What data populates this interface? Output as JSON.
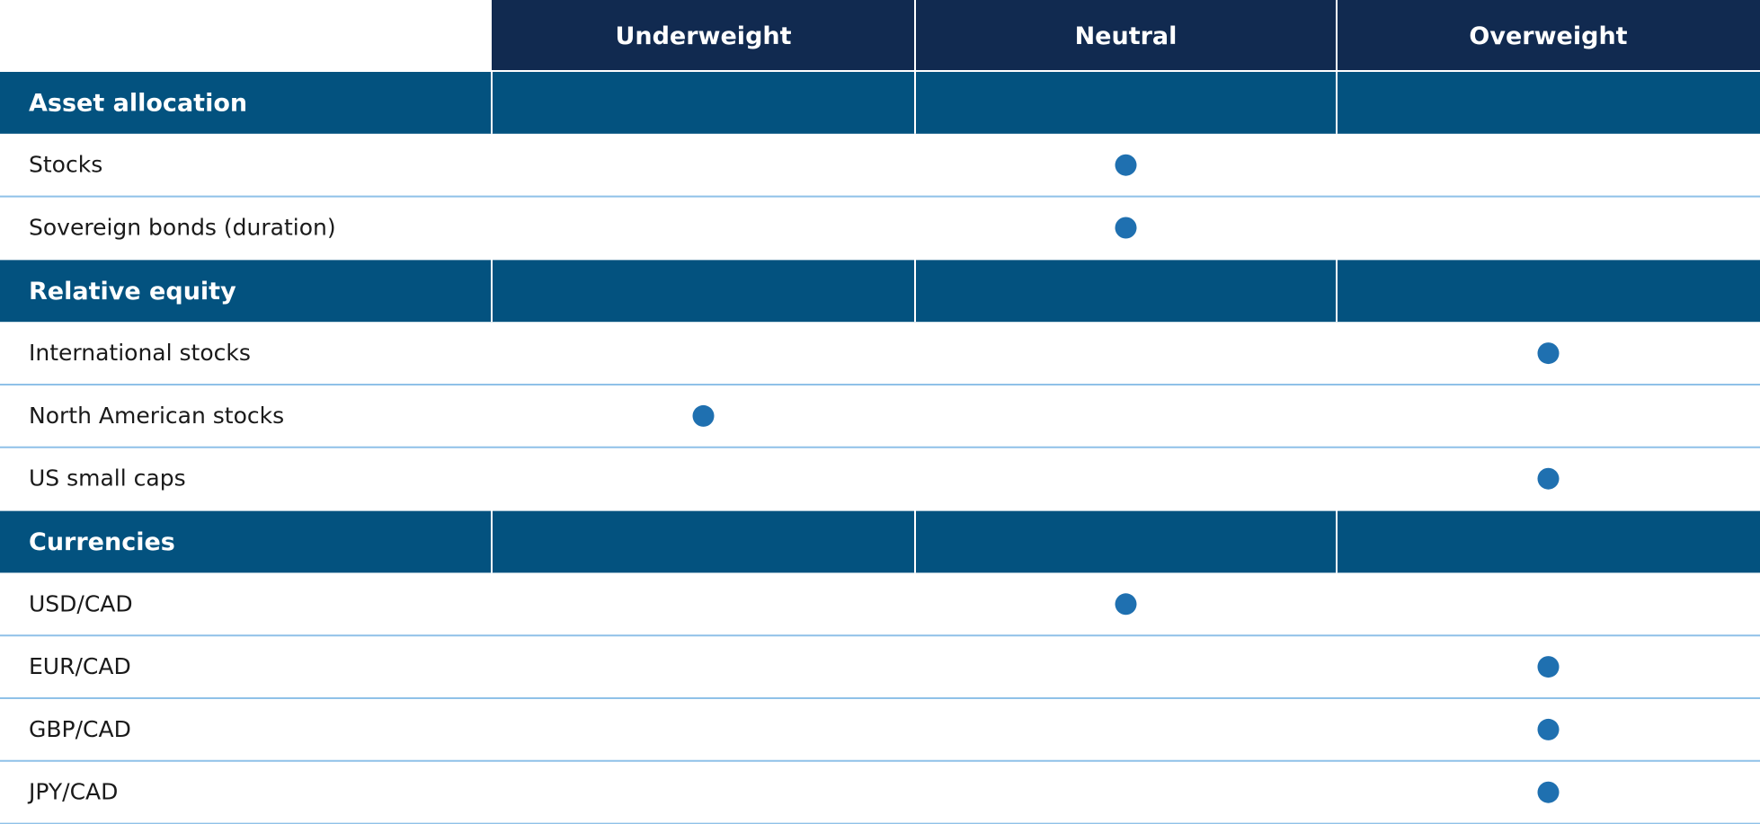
{
  "table": {
    "columns": [
      "Underweight",
      "Neutral",
      "Overweight"
    ],
    "sections": [
      {
        "title": "Asset allocation",
        "rows": [
          {
            "label": "Stocks",
            "column": 1
          },
          {
            "label": "Sovereign bonds (duration)",
            "column": 1
          }
        ]
      },
      {
        "title": "Relative equity",
        "rows": [
          {
            "label": "International stocks",
            "column": 2
          },
          {
            "label": "North American stocks",
            "column": 0
          },
          {
            "label": "US small caps",
            "column": 2
          }
        ]
      },
      {
        "title": "Currencies",
        "rows": [
          {
            "label": "USD/CAD",
            "column": 1
          },
          {
            "label": "EUR/CAD",
            "column": 2
          },
          {
            "label": "GBP/CAD",
            "column": 2
          },
          {
            "label": "JPY/CAD",
            "column": 2
          }
        ]
      }
    ]
  }
}
